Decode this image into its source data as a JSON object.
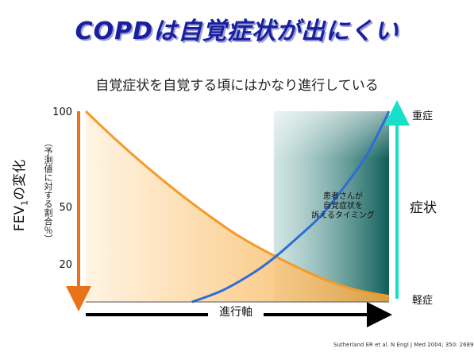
{
  "title": "COPDは自覚症状が出にくい",
  "subtitle": "自覚症状を自覚する頃にはかなり進行している",
  "colors": {
    "title": "#1a1f9e",
    "fev1_fill": "#f7a83c",
    "fev1_arrow": "#e8731a",
    "symptom_line": "#2b6fd6",
    "symptom_arrow": "#18e0c8",
    "timing_band": "#1f6f6a"
  },
  "chart_data": {
    "type": "line",
    "title": "",
    "xlabel": "進行軸",
    "ylabel": "FEV1の変化",
    "ylabel_note": "（予測値に対する割合％）",
    "y_ticks": [
      "100",
      "50",
      "20"
    ],
    "ylim": [
      0,
      100
    ],
    "xlim": [
      0,
      100
    ],
    "series": [
      {
        "name": "",
        "axis": "left",
        "values_x": [
          0,
          10,
          20,
          30,
          40,
          50,
          60,
          70,
          80,
          90,
          100
        ],
        "values_y": [
          100,
          85,
          71,
          58,
          46,
          35,
          26,
          18,
          11,
          6,
          3
        ]
      },
      {
        "name": "",
        "axis": "right",
        "values_x": [
          35,
          45,
          55,
          62,
          70,
          78,
          86,
          93,
          100
        ],
        "values_y": [
          0,
          6,
          15,
          23,
          34,
          46,
          62,
          78,
          100
        ]
      }
    ],
    "timing_band": {
      "x_start": 62,
      "x_end": 100
    },
    "right_axis": {
      "label": "症状",
      "top": "重症",
      "bottom": "軽症"
    },
    "annotation": [
      "患者さんが",
      "自覚症状を",
      "訴えるタイミング"
    ],
    "grid": false,
    "legend": "none"
  },
  "citation": "Sutherland ER et al. N Engl J Med 2004; 350: 2689"
}
